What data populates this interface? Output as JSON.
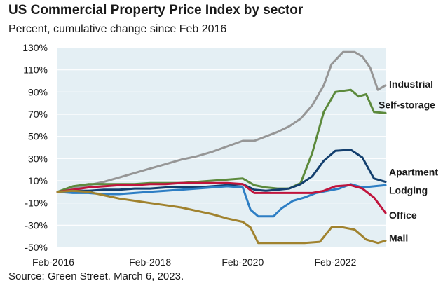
{
  "header": {
    "title": "US Commercial Property Price Index by sector",
    "subtitle": "Percent, cumulative change since Feb 2016"
  },
  "footer": {
    "source": "Source: Green Street. March 6, 2023."
  },
  "chart_data": {
    "type": "line",
    "title": "US Commercial Property Price Index by sector",
    "subtitle": "Percent, cumulative change since Feb 2016",
    "xlabel": "",
    "ylabel": "",
    "x_ticks": [
      "Feb-2016",
      "Feb-2018",
      "Feb-2020",
      "Feb-2022"
    ],
    "y_ticks": [
      "130%",
      "110%",
      "90%",
      "70%",
      "50%",
      "30%",
      "10%",
      "-10%",
      "-30%",
      "-50%"
    ],
    "xlim": [
      "2016-02",
      "2023-03"
    ],
    "ylim": [
      -50,
      130
    ],
    "grid": "horizontal",
    "plot_background": "#e4eff4",
    "legend": "labels at line ends (right)",
    "series": [
      {
        "name": "Industrial",
        "color": "#969696",
        "points": [
          [
            "2016-02",
            0
          ],
          [
            "2016-06",
            3
          ],
          [
            "2016-10",
            6
          ],
          [
            "2017-02",
            9
          ],
          [
            "2017-06",
            13
          ],
          [
            "2017-10",
            17
          ],
          [
            "2018-02",
            21
          ],
          [
            "2018-06",
            25
          ],
          [
            "2018-10",
            29
          ],
          [
            "2019-02",
            32
          ],
          [
            "2019-06",
            36
          ],
          [
            "2019-10",
            41
          ],
          [
            "2020-02",
            46
          ],
          [
            "2020-05",
            46
          ],
          [
            "2020-08",
            50
          ],
          [
            "2020-11",
            54
          ],
          [
            "2021-02",
            59
          ],
          [
            "2021-05",
            66
          ],
          [
            "2021-08",
            78
          ],
          [
            "2021-11",
            96
          ],
          [
            "2022-01",
            115
          ],
          [
            "2022-04",
            126
          ],
          [
            "2022-07",
            126
          ],
          [
            "2022-09",
            122
          ],
          [
            "2022-11",
            112
          ],
          [
            "2023-01",
            92
          ],
          [
            "2023-03",
            96
          ]
        ]
      },
      {
        "name": "Self-storage",
        "color": "#5c8a3c",
        "points": [
          [
            "2016-02",
            0
          ],
          [
            "2016-06",
            5
          ],
          [
            "2016-10",
            7
          ],
          [
            "2017-02",
            7
          ],
          [
            "2017-06",
            7
          ],
          [
            "2017-10",
            7
          ],
          [
            "2018-02",
            8
          ],
          [
            "2018-06",
            8
          ],
          [
            "2018-10",
            8
          ],
          [
            "2019-02",
            9
          ],
          [
            "2019-06",
            10
          ],
          [
            "2019-10",
            11
          ],
          [
            "2020-02",
            12
          ],
          [
            "2020-05",
            6
          ],
          [
            "2020-08",
            4
          ],
          [
            "2020-11",
            3
          ],
          [
            "2021-02",
            3
          ],
          [
            "2021-05",
            8
          ],
          [
            "2021-08",
            35
          ],
          [
            "2021-11",
            72
          ],
          [
            "2022-02",
            90
          ],
          [
            "2022-06",
            92
          ],
          [
            "2022-08",
            86
          ],
          [
            "2022-10",
            88
          ],
          [
            "2022-12",
            72
          ],
          [
            "2023-03",
            71
          ]
        ]
      },
      {
        "name": "Apartment",
        "color": "#133f6e",
        "points": [
          [
            "2016-02",
            0
          ],
          [
            "2016-06",
            1
          ],
          [
            "2016-10",
            1
          ],
          [
            "2017-02",
            2
          ],
          [
            "2017-06",
            2
          ],
          [
            "2017-10",
            3
          ],
          [
            "2018-02",
            3
          ],
          [
            "2018-06",
            4
          ],
          [
            "2018-10",
            4
          ],
          [
            "2019-02",
            4
          ],
          [
            "2019-06",
            5
          ],
          [
            "2019-10",
            6
          ],
          [
            "2020-02",
            7
          ],
          [
            "2020-05",
            2
          ],
          [
            "2020-08",
            1
          ],
          [
            "2020-11",
            2
          ],
          [
            "2021-02",
            3
          ],
          [
            "2021-05",
            7
          ],
          [
            "2021-08",
            14
          ],
          [
            "2021-11",
            28
          ],
          [
            "2022-02",
            37
          ],
          [
            "2022-06",
            38
          ],
          [
            "2022-09",
            31
          ],
          [
            "2022-12",
            12
          ],
          [
            "2023-03",
            9
          ]
        ]
      },
      {
        "name": "Lodging",
        "color": "#2d7ec4",
        "points": [
          [
            "2016-02",
            0
          ],
          [
            "2016-06",
            -1
          ],
          [
            "2016-10",
            -1
          ],
          [
            "2017-02",
            -2
          ],
          [
            "2017-06",
            -2
          ],
          [
            "2017-10",
            -1
          ],
          [
            "2018-02",
            0
          ],
          [
            "2018-06",
            1
          ],
          [
            "2018-10",
            2
          ],
          [
            "2019-02",
            3
          ],
          [
            "2019-06",
            4
          ],
          [
            "2019-10",
            5
          ],
          [
            "2020-02",
            4
          ],
          [
            "2020-04",
            -16
          ],
          [
            "2020-06",
            -22
          ],
          [
            "2020-08",
            -22
          ],
          [
            "2020-10",
            -22
          ],
          [
            "2020-12",
            -15
          ],
          [
            "2021-03",
            -8
          ],
          [
            "2021-06",
            -5
          ],
          [
            "2021-09",
            -1
          ],
          [
            "2021-12",
            1
          ],
          [
            "2022-03",
            3
          ],
          [
            "2022-06",
            7
          ],
          [
            "2022-09",
            4
          ],
          [
            "2022-12",
            5
          ],
          [
            "2023-03",
            6
          ]
        ]
      },
      {
        "name": "Office",
        "color": "#c0143c",
        "points": [
          [
            "2016-02",
            0
          ],
          [
            "2016-06",
            2
          ],
          [
            "2016-10",
            4
          ],
          [
            "2017-02",
            5
          ],
          [
            "2017-06",
            6
          ],
          [
            "2017-10",
            6
          ],
          [
            "2018-02",
            7
          ],
          [
            "2018-06",
            7
          ],
          [
            "2018-10",
            8
          ],
          [
            "2019-02",
            8
          ],
          [
            "2019-06",
            8
          ],
          [
            "2019-10",
            8
          ],
          [
            "2020-02",
            7
          ],
          [
            "2020-05",
            -1
          ],
          [
            "2020-08",
            -1
          ],
          [
            "2020-11",
            -1
          ],
          [
            "2021-02",
            -1
          ],
          [
            "2021-05",
            -1
          ],
          [
            "2021-08",
            -1
          ],
          [
            "2021-11",
            1
          ],
          [
            "2022-02",
            5
          ],
          [
            "2022-06",
            6
          ],
          [
            "2022-09",
            3
          ],
          [
            "2022-12",
            -5
          ],
          [
            "2023-03",
            -19
          ]
        ]
      },
      {
        "name": "Mall",
        "color": "#a0822e",
        "points": [
          [
            "2016-02",
            0
          ],
          [
            "2016-06",
            1
          ],
          [
            "2016-10",
            0
          ],
          [
            "2017-02",
            -3
          ],
          [
            "2017-06",
            -6
          ],
          [
            "2017-10",
            -8
          ],
          [
            "2018-02",
            -10
          ],
          [
            "2018-06",
            -12
          ],
          [
            "2018-10",
            -14
          ],
          [
            "2019-02",
            -17
          ],
          [
            "2019-06",
            -20
          ],
          [
            "2019-10",
            -24
          ],
          [
            "2020-02",
            -27
          ],
          [
            "2020-04",
            -32
          ],
          [
            "2020-06",
            -46
          ],
          [
            "2020-10",
            -46
          ],
          [
            "2021-02",
            -46
          ],
          [
            "2021-06",
            -46
          ],
          [
            "2021-10",
            -45
          ],
          [
            "2022-01",
            -32
          ],
          [
            "2022-04",
            -32
          ],
          [
            "2022-07",
            -34
          ],
          [
            "2022-10",
            -43
          ],
          [
            "2023-01",
            -46
          ],
          [
            "2023-03",
            -44
          ]
        ]
      }
    ],
    "series_labels": [
      "Industrial",
      "Self-storage",
      "Apartment",
      "Lodging",
      "Office",
      "Mall"
    ]
  }
}
